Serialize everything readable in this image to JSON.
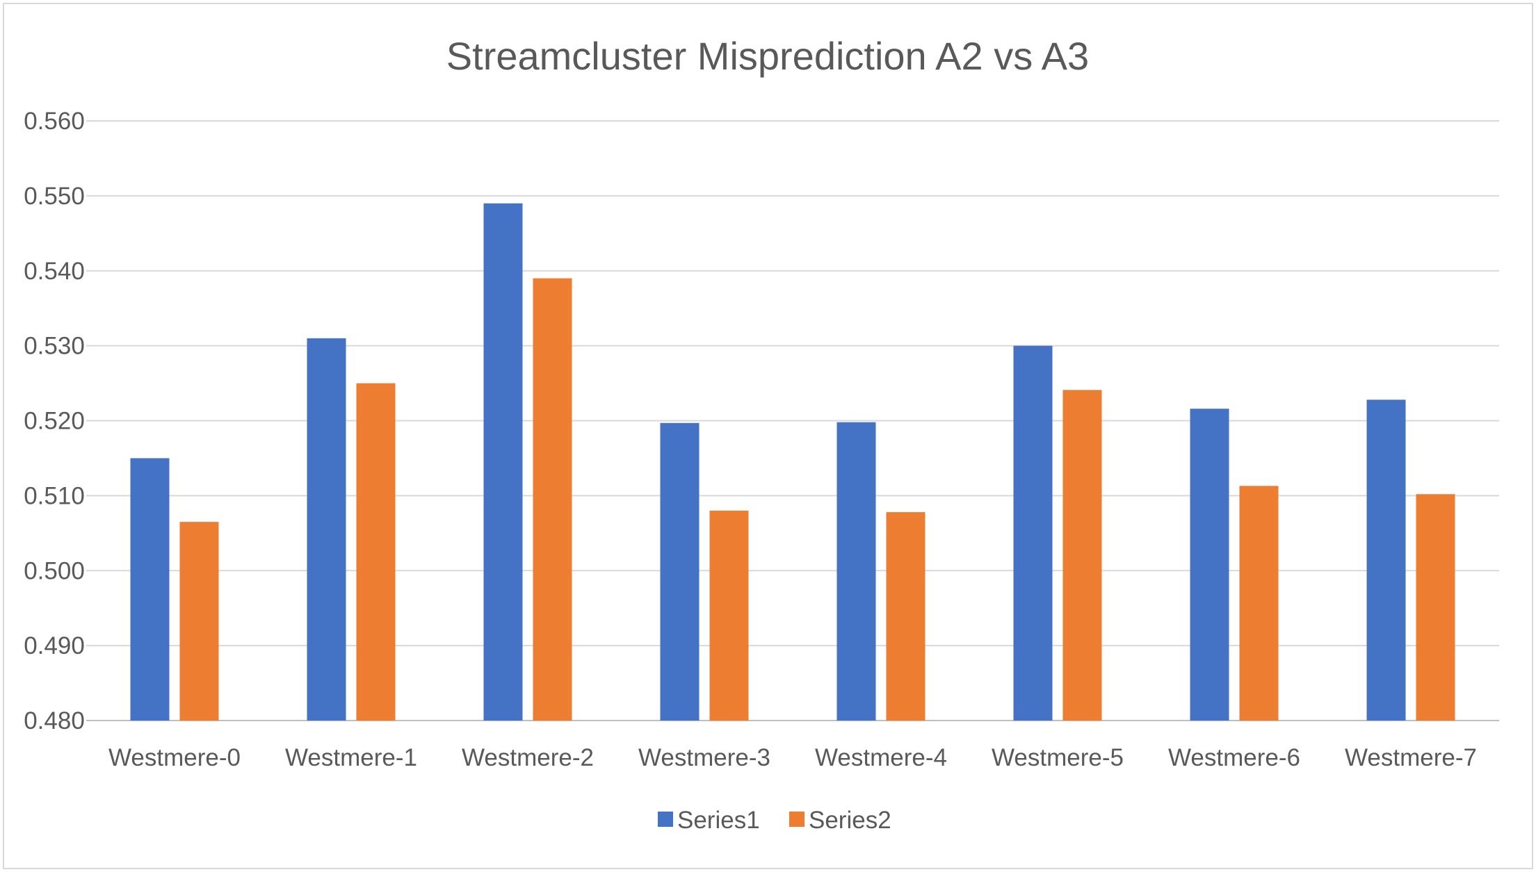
{
  "chart_data": {
    "type": "bar",
    "title": "Streamcluster Misprediction A2 vs A3",
    "xlabel": "",
    "ylabel": "",
    "categories": [
      "Westmere-0",
      "Westmere-1",
      "Westmere-2",
      "Westmere-3",
      "Westmere-4",
      "Westmere-5",
      "Westmere-6",
      "Westmere-7"
    ],
    "series": [
      {
        "name": "Series1",
        "color": "#4472c4",
        "values": [
          0.515,
          0.531,
          0.549,
          0.5197,
          0.5198,
          0.53,
          0.5216,
          0.5228
        ]
      },
      {
        "name": "Series2",
        "color": "#ed7d31",
        "values": [
          0.5065,
          0.525,
          0.539,
          0.508,
          0.5078,
          0.5241,
          0.5113,
          0.5102
        ]
      }
    ],
    "ylim": [
      0.48,
      0.56
    ],
    "yticks": [
      "0.480",
      "0.490",
      "0.500",
      "0.510",
      "0.520",
      "0.530",
      "0.540",
      "0.550",
      "0.560"
    ],
    "grid": true,
    "legend_position": "bottom"
  }
}
